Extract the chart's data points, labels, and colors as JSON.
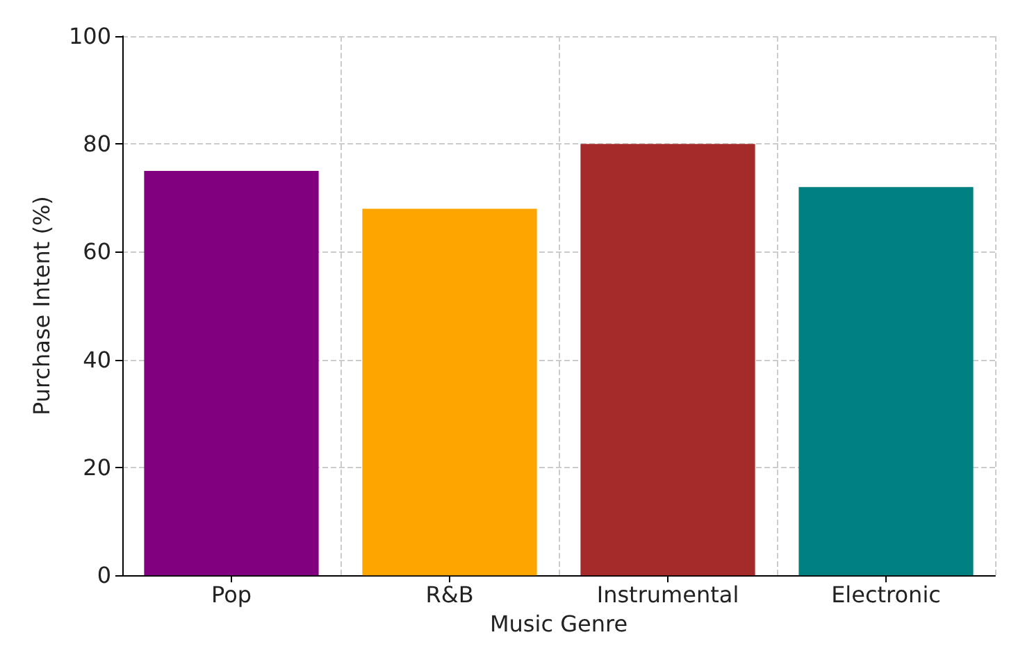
{
  "chart_data": {
    "type": "bar",
    "xlabel": "Music Genre",
    "ylabel": "Purchase Intent (%)",
    "categories": [
      "Pop",
      "R&B",
      "Instrumental",
      "Electronic"
    ],
    "values": [
      75,
      68,
      80,
      72
    ],
    "colors": [
      "#800080",
      "#ffa500",
      "#a52a2a",
      "#008080"
    ],
    "ylim": [
      0,
      100
    ],
    "yticks": [
      0,
      20,
      40,
      60,
      80,
      100
    ],
    "grid": true
  }
}
